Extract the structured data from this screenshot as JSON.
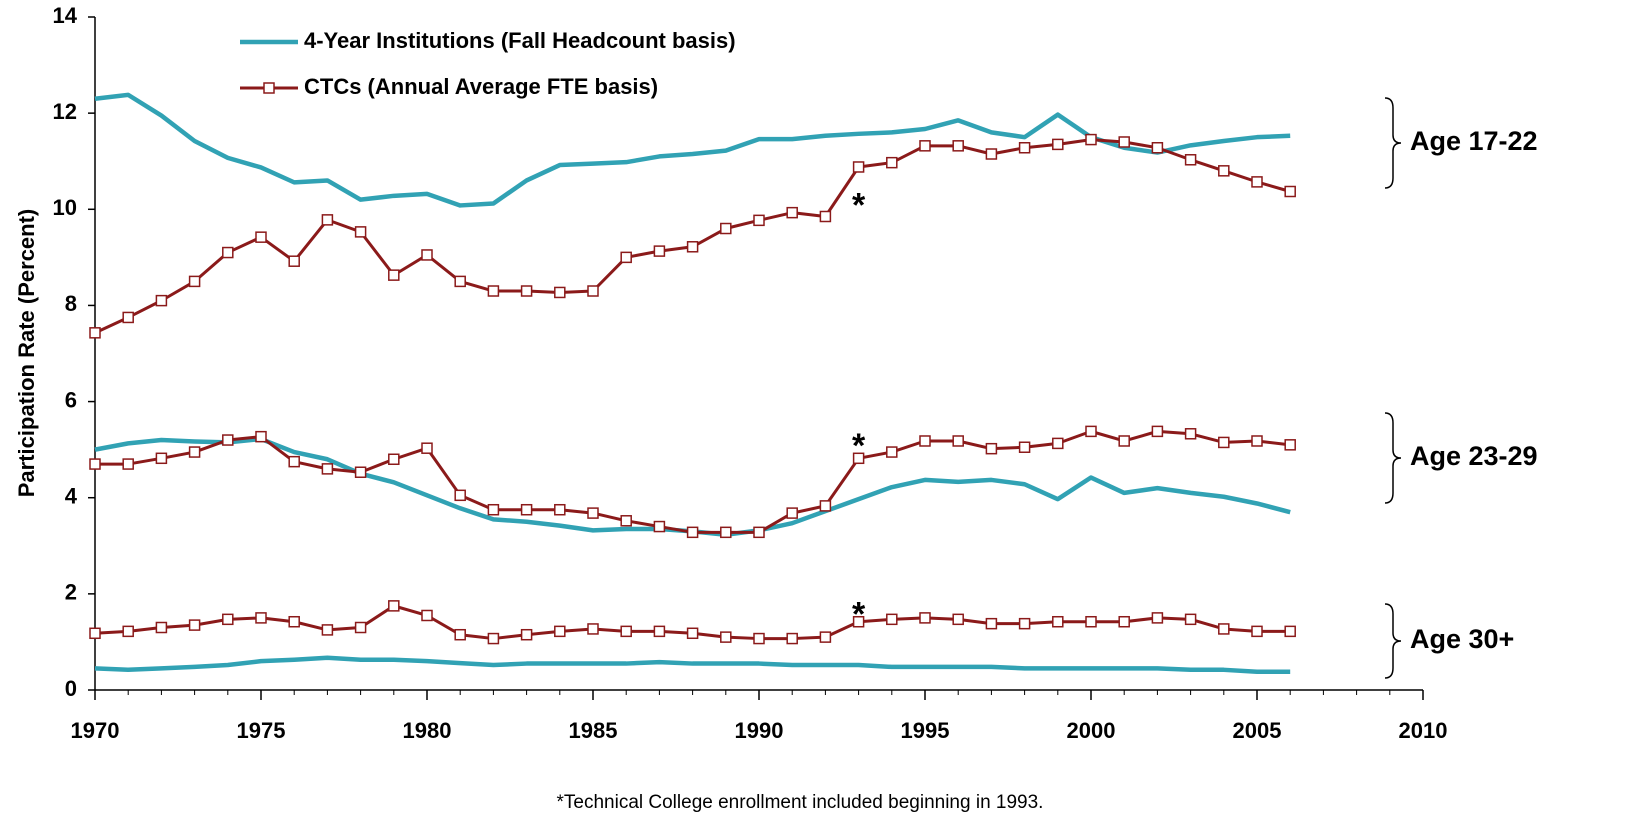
{
  "chart_data": {
    "type": "line",
    "ylabel": "Participation Rate (Percent)",
    "footnote": "*Technical College enrollment included beginning in 1993.",
    "x": [
      1970,
      1971,
      1972,
      1973,
      1974,
      1975,
      1976,
      1977,
      1978,
      1979,
      1980,
      1981,
      1982,
      1983,
      1984,
      1985,
      1986,
      1987,
      1988,
      1989,
      1990,
      1991,
      1992,
      1993,
      1994,
      1995,
      1996,
      1997,
      1998,
      1999,
      2000,
      2001,
      2002,
      2003,
      2004,
      2005,
      2006
    ],
    "xlim": [
      1970,
      2010
    ],
    "xticks": [
      1970,
      1975,
      1980,
      1985,
      1990,
      1995,
      2000,
      2005,
      2010
    ],
    "ylim": [
      0,
      14
    ],
    "yticks": [
      0,
      2,
      4,
      6,
      8,
      10,
      12,
      14
    ],
    "groups": [
      "Age 17-22",
      "Age 23-29",
      "Age 30+"
    ],
    "series": [
      {
        "name": "4-Year Institutions (Fall Headcount basis)",
        "color": "#31a2b4",
        "marker": "none",
        "values": [
          [
            12.3,
            12.38,
            11.95,
            11.42,
            11.07,
            10.87,
            10.56,
            10.6,
            10.2,
            10.28,
            10.32,
            10.08,
            10.12,
            10.6,
            10.92,
            10.95,
            10.98,
            11.1,
            11.15,
            11.22,
            11.46,
            11.46,
            11.53,
            11.57,
            11.6,
            11.67,
            11.85,
            11.6,
            11.5,
            11.97,
            11.5,
            11.28,
            11.18,
            11.33,
            11.42,
            11.5,
            11.53
          ],
          [
            5.0,
            5.13,
            5.2,
            5.17,
            5.15,
            5.22,
            4.95,
            4.8,
            4.5,
            4.32,
            4.05,
            3.78,
            3.55,
            3.5,
            3.42,
            3.32,
            3.35,
            3.35,
            3.3,
            3.23,
            3.32,
            3.47,
            3.72,
            3.97,
            4.22,
            4.37,
            4.33,
            4.37,
            4.28,
            3.97,
            4.42,
            4.1,
            4.2,
            4.1,
            4.02,
            3.88,
            3.7
          ],
          [
            0.45,
            0.42,
            0.45,
            0.48,
            0.52,
            0.6,
            0.63,
            0.67,
            0.63,
            0.63,
            0.6,
            0.56,
            0.52,
            0.55,
            0.55,
            0.55,
            0.55,
            0.58,
            0.55,
            0.55,
            0.55,
            0.52,
            0.52,
            0.52,
            0.48,
            0.48,
            0.48,
            0.48,
            0.45,
            0.45,
            0.45,
            0.45,
            0.45,
            0.42,
            0.42,
            0.38,
            0.38
          ]
        ]
      },
      {
        "name": "CTCs (Annual Average FTE basis)",
        "color": "#8b1a1a",
        "marker": "square",
        "values": [
          [
            7.43,
            7.75,
            8.1,
            8.5,
            9.1,
            9.42,
            8.92,
            9.78,
            9.53,
            8.63,
            9.05,
            8.5,
            8.3,
            8.3,
            8.27,
            8.3,
            9.0,
            9.13,
            9.22,
            9.6,
            9.77,
            9.93,
            9.85,
            10.88,
            10.97,
            11.32,
            11.32,
            11.15,
            11.28,
            11.35,
            11.45,
            11.4,
            11.28,
            11.03,
            10.8,
            10.57,
            10.37
          ],
          [
            4.7,
            4.7,
            4.82,
            4.95,
            5.2,
            5.27,
            4.75,
            4.6,
            4.53,
            4.8,
            5.03,
            4.05,
            3.75,
            3.75,
            3.75,
            3.68,
            3.52,
            3.4,
            3.28,
            3.28,
            3.28,
            3.68,
            3.83,
            4.82,
            4.95,
            5.18,
            5.18,
            5.02,
            5.05,
            5.13,
            5.38,
            5.18,
            5.38,
            5.33,
            5.15,
            5.18,
            5.1
          ],
          [
            1.18,
            1.22,
            1.3,
            1.35,
            1.47,
            1.5,
            1.42,
            1.25,
            1.3,
            1.75,
            1.55,
            1.15,
            1.07,
            1.15,
            1.22,
            1.27,
            1.22,
            1.22,
            1.18,
            1.1,
            1.07,
            1.07,
            1.1,
            1.42,
            1.47,
            1.5,
            1.47,
            1.38,
            1.38,
            1.42,
            1.42,
            1.42,
            1.5,
            1.47,
            1.27,
            1.22,
            1.22
          ]
        ]
      }
    ],
    "annotations": [
      {
        "text": "*",
        "x": 1993,
        "y": 10.2
      },
      {
        "text": "*",
        "x": 1993,
        "y": 5.2
      },
      {
        "text": "*",
        "x": 1993,
        "y": 1.7
      }
    ]
  }
}
